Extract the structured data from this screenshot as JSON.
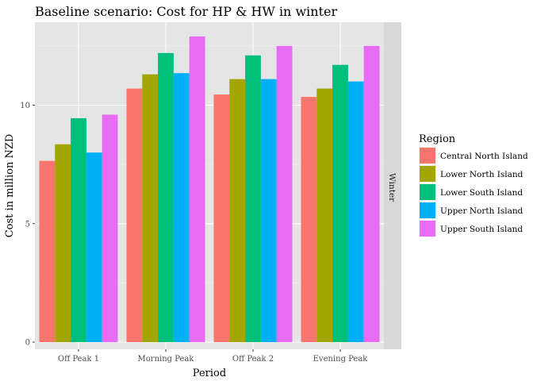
{
  "chart_data": {
    "type": "bar",
    "title": "Baseline scenario: Cost for HP & HW in winter",
    "xlabel": "Period",
    "ylabel": "Cost in million NZD",
    "facet_label": "Winter",
    "categories": [
      "Off Peak 1",
      "Morning Peak",
      "Off Peak 2",
      "Evening Peak"
    ],
    "ylim": [
      -0.3,
      13.5
    ],
    "yticks": [
      0,
      5,
      10
    ],
    "grid": true,
    "legend": {
      "title": "Region",
      "position": "right"
    },
    "series": [
      {
        "name": "Central North Island",
        "color": "#F8766D",
        "values": [
          7.65,
          10.7,
          10.45,
          10.35
        ]
      },
      {
        "name": "Lower North Island",
        "color": "#A3A500",
        "values": [
          8.35,
          11.3,
          11.1,
          10.7
        ]
      },
      {
        "name": "Lower South Island",
        "color": "#00BF7D",
        "values": [
          9.45,
          12.2,
          12.1,
          11.7
        ]
      },
      {
        "name": "Upper North Island",
        "color": "#00B0F6",
        "values": [
          8.0,
          11.35,
          11.1,
          11.0
        ]
      },
      {
        "name": "Upper South Island",
        "color": "#E76BF3",
        "values": [
          9.6,
          12.9,
          12.5,
          12.5
        ]
      }
    ]
  }
}
